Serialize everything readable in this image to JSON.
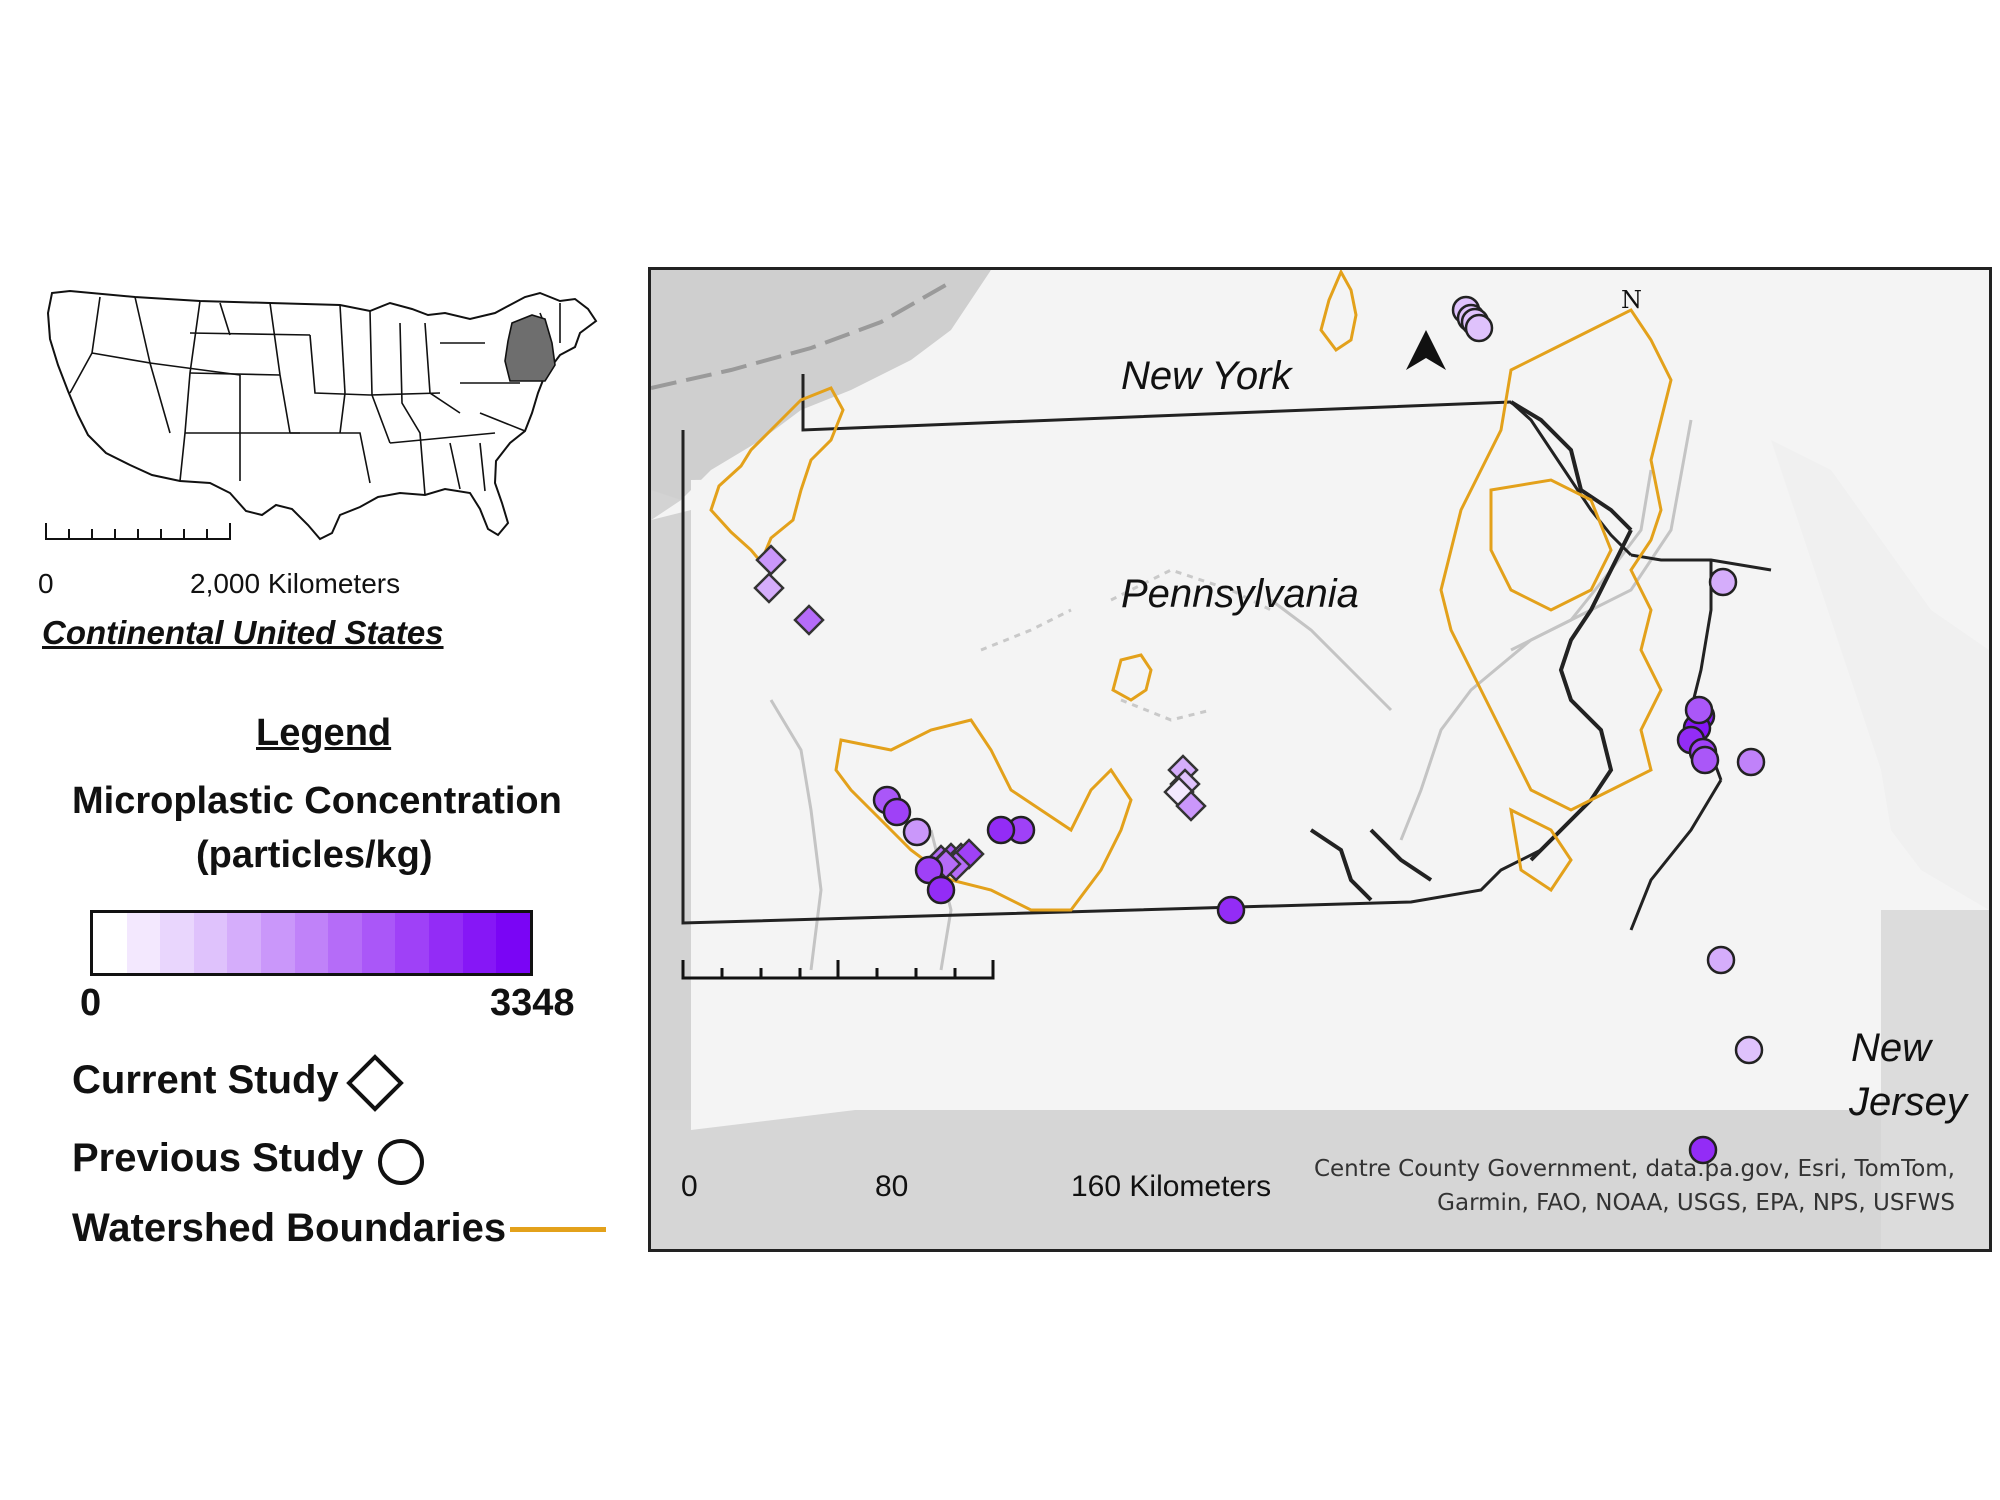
{
  "inset": {
    "scale_zero": "0",
    "scale_label": "2,000 Kilometers",
    "title": "Continental United States",
    "base_fill": "#ffffff",
    "highlight_fill": "#6e6e6e"
  },
  "legend": {
    "title": "Legend",
    "concentration_title_line1": "Microplastic Concentration",
    "concentration_title_line2": "(particles/kg)",
    "ramp_min": "0",
    "ramp_max": "3348",
    "ramp_colors": [
      "#ffffff",
      "#f3e8fe",
      "#e9d6fd",
      "#dfc2fc",
      "#d5adfb",
      "#ca97fa",
      "#c082f9",
      "#b56cf8",
      "#aa57f8",
      "#9f41f7",
      "#932cf6",
      "#8617f6",
      "#7a05f5"
    ],
    "current_study_label": "Current Study",
    "previous_study_label": "Previous Study",
    "watershed_label": "Watershed Boundaries",
    "watershed_color": "#e3a11b"
  },
  "map": {
    "labels": {
      "new_york": "New York",
      "pennsylvania": "Pennsylvania",
      "new_jersey_line1": "New",
      "new_jersey_line2": "Jersey"
    },
    "north_label": "N",
    "scale": {
      "tick_0": "0",
      "tick_80": "80",
      "tick_160": "160 Kilometers"
    },
    "attribution_line1": "Centre County Government, data.pa.gov, Esri, TomTom,",
    "attribution_line2": "Garmin, FAO, NOAA, USGS, EPA, NPS, USFWS",
    "colors": {
      "land": "#f4f4f4",
      "water": "#cfcfcf",
      "state_border": "#222222",
      "watershed": "#e3a11b",
      "river": "#c4c4c4"
    },
    "samples": {
      "current_study": [
        {
          "concentration_fraction": 0.45
        },
        {
          "concentration_fraction": 0.35
        },
        {
          "concentration_fraction": 0.55
        },
        {
          "concentration_fraction": 0.3
        },
        {
          "concentration_fraction": 0.22
        },
        {
          "concentration_fraction": 0.05
        },
        {
          "concentration_fraction": 0.4
        },
        {
          "concentration_fraction": 0.6
        },
        {
          "concentration_fraction": 0.65
        },
        {
          "concentration_fraction": 0.7
        },
        {
          "concentration_fraction": 0.75
        },
        {
          "concentration_fraction": 0.6
        },
        {
          "concentration_fraction": 0.55
        }
      ],
      "previous_study": [
        {
          "concentration_fraction": 0.28
        },
        {
          "concentration_fraction": 0.25
        },
        {
          "concentration_fraction": 0.22
        },
        {
          "concentration_fraction": 0.25
        },
        {
          "concentration_fraction": 0.7
        },
        {
          "concentration_fraction": 0.75
        },
        {
          "concentration_fraction": 0.45
        },
        {
          "concentration_fraction": 0.75
        },
        {
          "concentration_fraction": 0.8
        },
        {
          "concentration_fraction": 0.85
        },
        {
          "concentration_fraction": 0.75
        },
        {
          "concentration_fraction": 0.8
        },
        {
          "concentration_fraction": 0.9
        },
        {
          "concentration_fraction": 0.9
        },
        {
          "concentration_fraction": 0.8
        },
        {
          "concentration_fraction": 0.75
        },
        {
          "concentration_fraction": 0.7
        },
        {
          "concentration_fraction": 0.65
        },
        {
          "concentration_fraction": 0.3
        },
        {
          "concentration_fraction": 0.5
        },
        {
          "concentration_fraction": 0.3
        },
        {
          "concentration_fraction": 0.25
        },
        {
          "concentration_fraction": 0.85
        }
      ]
    }
  }
}
